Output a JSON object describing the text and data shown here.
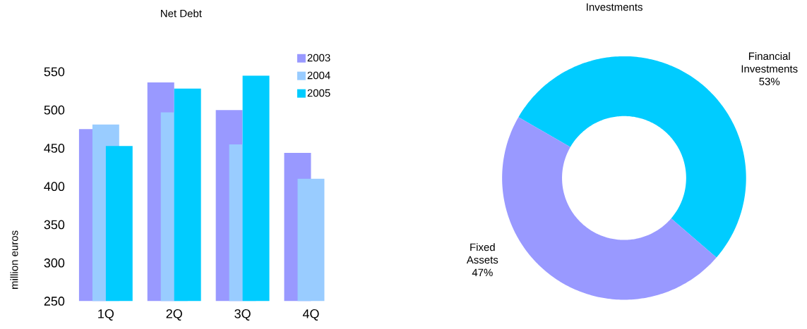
{
  "chart_data": [
    {
      "type": "bar",
      "title": "Net Debt",
      "ylabel": "million euros",
      "categories": [
        "1Q",
        "2Q",
        "3Q",
        "4Q"
      ],
      "series": [
        {
          "name": "2003",
          "color": "#9999ff",
          "values": [
            475,
            536,
            500,
            444
          ]
        },
        {
          "name": "2004",
          "color": "#99ccff",
          "values": [
            481,
            497,
            455,
            410
          ]
        },
        {
          "name": "2005",
          "color": "#00ccff",
          "values": [
            453,
            528,
            545,
            null
          ]
        }
      ],
      "ylim": [
        250,
        550
      ],
      "yticks": [
        250,
        300,
        350,
        400,
        450,
        500,
        550
      ],
      "legend": "top right"
    },
    {
      "type": "donut",
      "title": "Investments",
      "categories": [
        "Financial Investments",
        "Fixed Assets"
      ],
      "values": [
        53,
        47
      ],
      "value_labels": [
        "53%",
        "47%"
      ],
      "colors": [
        "#00ccff",
        "#9999ff"
      ]
    }
  ]
}
